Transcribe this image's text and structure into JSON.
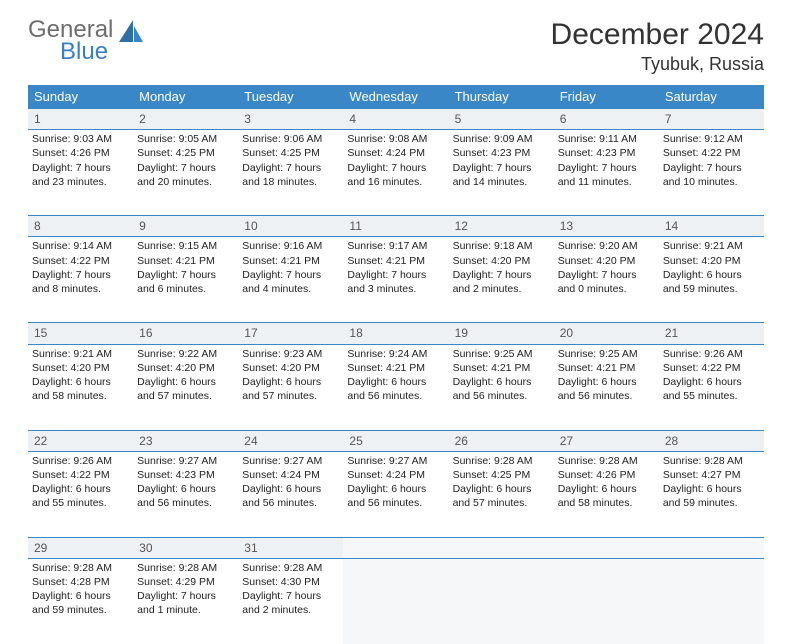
{
  "brand": {
    "part1": "General",
    "part2": "Blue"
  },
  "title": "December 2024",
  "location": "Tyubuk, Russia",
  "colors": {
    "header_bg": "#3a87c7",
    "header_text": "#ffffff",
    "daynum_bg": "#eef1f3",
    "border": "#3a87c7",
    "brand_gray": "#6d6d6d",
    "brand_blue": "#3a7fc4"
  },
  "typography": {
    "title_fontsize": 30,
    "location_fontsize": 18,
    "dayhead_fontsize": 13,
    "cell_fontsize": 10.5
  },
  "day_headers": [
    "Sunday",
    "Monday",
    "Tuesday",
    "Wednesday",
    "Thursday",
    "Friday",
    "Saturday"
  ],
  "weeks": [
    [
      {
        "n": "1",
        "sr": "Sunrise: 9:03 AM",
        "ss": "Sunset: 4:26 PM",
        "d1": "Daylight: 7 hours",
        "d2": "and 23 minutes."
      },
      {
        "n": "2",
        "sr": "Sunrise: 9:05 AM",
        "ss": "Sunset: 4:25 PM",
        "d1": "Daylight: 7 hours",
        "d2": "and 20 minutes."
      },
      {
        "n": "3",
        "sr": "Sunrise: 9:06 AM",
        "ss": "Sunset: 4:25 PM",
        "d1": "Daylight: 7 hours",
        "d2": "and 18 minutes."
      },
      {
        "n": "4",
        "sr": "Sunrise: 9:08 AM",
        "ss": "Sunset: 4:24 PM",
        "d1": "Daylight: 7 hours",
        "d2": "and 16 minutes."
      },
      {
        "n": "5",
        "sr": "Sunrise: 9:09 AM",
        "ss": "Sunset: 4:23 PM",
        "d1": "Daylight: 7 hours",
        "d2": "and 14 minutes."
      },
      {
        "n": "6",
        "sr": "Sunrise: 9:11 AM",
        "ss": "Sunset: 4:23 PM",
        "d1": "Daylight: 7 hours",
        "d2": "and 11 minutes."
      },
      {
        "n": "7",
        "sr": "Sunrise: 9:12 AM",
        "ss": "Sunset: 4:22 PM",
        "d1": "Daylight: 7 hours",
        "d2": "and 10 minutes."
      }
    ],
    [
      {
        "n": "8",
        "sr": "Sunrise: 9:14 AM",
        "ss": "Sunset: 4:22 PM",
        "d1": "Daylight: 7 hours",
        "d2": "and 8 minutes."
      },
      {
        "n": "9",
        "sr": "Sunrise: 9:15 AM",
        "ss": "Sunset: 4:21 PM",
        "d1": "Daylight: 7 hours",
        "d2": "and 6 minutes."
      },
      {
        "n": "10",
        "sr": "Sunrise: 9:16 AM",
        "ss": "Sunset: 4:21 PM",
        "d1": "Daylight: 7 hours",
        "d2": "and 4 minutes."
      },
      {
        "n": "11",
        "sr": "Sunrise: 9:17 AM",
        "ss": "Sunset: 4:21 PM",
        "d1": "Daylight: 7 hours",
        "d2": "and 3 minutes."
      },
      {
        "n": "12",
        "sr": "Sunrise: 9:18 AM",
        "ss": "Sunset: 4:20 PM",
        "d1": "Daylight: 7 hours",
        "d2": "and 2 minutes."
      },
      {
        "n": "13",
        "sr": "Sunrise: 9:20 AM",
        "ss": "Sunset: 4:20 PM",
        "d1": "Daylight: 7 hours",
        "d2": "and 0 minutes."
      },
      {
        "n": "14",
        "sr": "Sunrise: 9:21 AM",
        "ss": "Sunset: 4:20 PM",
        "d1": "Daylight: 6 hours",
        "d2": "and 59 minutes."
      }
    ],
    [
      {
        "n": "15",
        "sr": "Sunrise: 9:21 AM",
        "ss": "Sunset: 4:20 PM",
        "d1": "Daylight: 6 hours",
        "d2": "and 58 minutes."
      },
      {
        "n": "16",
        "sr": "Sunrise: 9:22 AM",
        "ss": "Sunset: 4:20 PM",
        "d1": "Daylight: 6 hours",
        "d2": "and 57 minutes."
      },
      {
        "n": "17",
        "sr": "Sunrise: 9:23 AM",
        "ss": "Sunset: 4:20 PM",
        "d1": "Daylight: 6 hours",
        "d2": "and 57 minutes."
      },
      {
        "n": "18",
        "sr": "Sunrise: 9:24 AM",
        "ss": "Sunset: 4:21 PM",
        "d1": "Daylight: 6 hours",
        "d2": "and 56 minutes."
      },
      {
        "n": "19",
        "sr": "Sunrise: 9:25 AM",
        "ss": "Sunset: 4:21 PM",
        "d1": "Daylight: 6 hours",
        "d2": "and 56 minutes."
      },
      {
        "n": "20",
        "sr": "Sunrise: 9:25 AM",
        "ss": "Sunset: 4:21 PM",
        "d1": "Daylight: 6 hours",
        "d2": "and 56 minutes."
      },
      {
        "n": "21",
        "sr": "Sunrise: 9:26 AM",
        "ss": "Sunset: 4:22 PM",
        "d1": "Daylight: 6 hours",
        "d2": "and 55 minutes."
      }
    ],
    [
      {
        "n": "22",
        "sr": "Sunrise: 9:26 AM",
        "ss": "Sunset: 4:22 PM",
        "d1": "Daylight: 6 hours",
        "d2": "and 55 minutes."
      },
      {
        "n": "23",
        "sr": "Sunrise: 9:27 AM",
        "ss": "Sunset: 4:23 PM",
        "d1": "Daylight: 6 hours",
        "d2": "and 56 minutes."
      },
      {
        "n": "24",
        "sr": "Sunrise: 9:27 AM",
        "ss": "Sunset: 4:24 PM",
        "d1": "Daylight: 6 hours",
        "d2": "and 56 minutes."
      },
      {
        "n": "25",
        "sr": "Sunrise: 9:27 AM",
        "ss": "Sunset: 4:24 PM",
        "d1": "Daylight: 6 hours",
        "d2": "and 56 minutes."
      },
      {
        "n": "26",
        "sr": "Sunrise: 9:28 AM",
        "ss": "Sunset: 4:25 PM",
        "d1": "Daylight: 6 hours",
        "d2": "and 57 minutes."
      },
      {
        "n": "27",
        "sr": "Sunrise: 9:28 AM",
        "ss": "Sunset: 4:26 PM",
        "d1": "Daylight: 6 hours",
        "d2": "and 58 minutes."
      },
      {
        "n": "28",
        "sr": "Sunrise: 9:28 AM",
        "ss": "Sunset: 4:27 PM",
        "d1": "Daylight: 6 hours",
        "d2": "and 59 minutes."
      }
    ],
    [
      {
        "n": "29",
        "sr": "Sunrise: 9:28 AM",
        "ss": "Sunset: 4:28 PM",
        "d1": "Daylight: 6 hours",
        "d2": "and 59 minutes."
      },
      {
        "n": "30",
        "sr": "Sunrise: 9:28 AM",
        "ss": "Sunset: 4:29 PM",
        "d1": "Daylight: 7 hours",
        "d2": "and 1 minute."
      },
      {
        "n": "31",
        "sr": "Sunrise: 9:28 AM",
        "ss": "Sunset: 4:30 PM",
        "d1": "Daylight: 7 hours",
        "d2": "and 2 minutes."
      },
      null,
      null,
      null,
      null
    ]
  ]
}
